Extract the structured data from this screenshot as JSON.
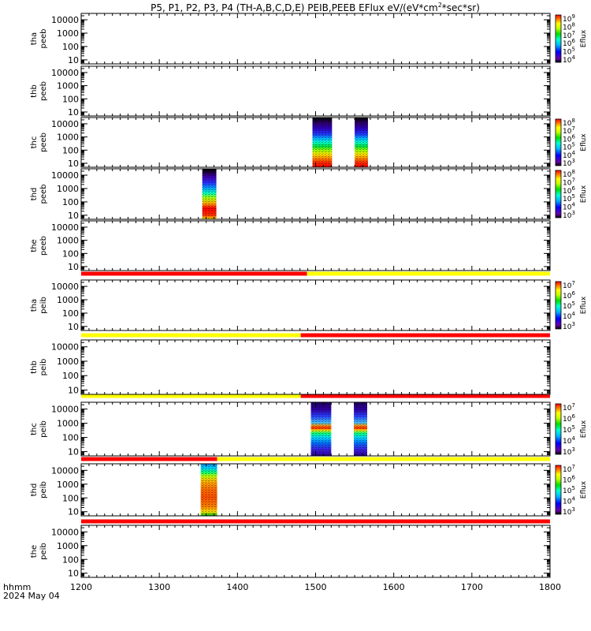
{
  "title": "P5, P1, P2, P3, P4 (TH-A,B,C,D,E) PEIB,PEEB EFlux eV/(eV*cm",
  "title_sup": "2",
  "title_end": "*sec*sr)",
  "x_axis": {
    "unit_label": "hhmm",
    "date_label": "2024 May 04"
  },
  "colorbar_label": "Eflux",
  "chart_data": {
    "type": "heatmap",
    "x_range": [
      1200,
      1800
    ],
    "x_ticks": [
      "1200",
      "1300",
      "1400",
      "1500",
      "1600",
      "1700",
      "1800"
    ],
    "y_ticks": [
      "10",
      "100",
      "1000",
      "10000"
    ],
    "y_scale": "log",
    "y_range": [
      5,
      30000
    ],
    "panels": [
      {
        "probe": "tha",
        "instrument": "peeb",
        "label1": "tha",
        "label2": "peeb",
        "colorbar": {
          "ticks": [
            "10",
            "10",
            "10",
            "10",
            "10",
            "10"
          ],
          "exps": [
            "9",
            "8",
            "7",
            "6",
            "5",
            "4"
          ]
        },
        "blocks": [],
        "status_bar": null
      },
      {
        "probe": "thb",
        "instrument": "peeb",
        "label1": "thb",
        "label2": "peeb",
        "colorbar": null,
        "blocks": [],
        "status_bar": null
      },
      {
        "probe": "thc",
        "instrument": "peeb",
        "label1": "thc",
        "label2": "peeb",
        "colorbar": {
          "ticks": [
            "10",
            "10",
            "10",
            "10",
            "10",
            "10"
          ],
          "exps": [
            "8",
            "7",
            "6",
            "5",
            "4",
            "3"
          ]
        },
        "blocks": [
          {
            "x0": 1496,
            "x1": 1521,
            "style": "peeb_high"
          },
          {
            "x0": 1550,
            "x1": 1567,
            "style": "peeb_high"
          }
        ],
        "status_bar": null
      },
      {
        "probe": "thd",
        "instrument": "peeb",
        "label1": "thd",
        "label2": "peeb",
        "colorbar": {
          "ticks": [
            "10",
            "10",
            "10",
            "10",
            "10",
            "10"
          ],
          "exps": [
            "8",
            "7",
            "6",
            "5",
            "4",
            "3"
          ]
        },
        "blocks": [
          {
            "x0": 1355,
            "x1": 1373,
            "style": "peeb_low"
          }
        ],
        "status_bar": null
      },
      {
        "probe": "the",
        "instrument": "peeb",
        "label1": "the",
        "label2": "peeb",
        "colorbar": null,
        "blocks": [],
        "status_bar": [
          {
            "x0": 1200,
            "x1": 1489,
            "color": "#ff0000"
          },
          {
            "x0": 1489,
            "x1": 1800,
            "color": "#ffff00"
          }
        ]
      },
      {
        "probe": "tha",
        "instrument": "peib",
        "label1": "tha",
        "label2": "peib",
        "colorbar": {
          "ticks": [
            "10",
            "10",
            "10",
            "10",
            "10"
          ],
          "exps": [
            "7",
            "6",
            "5",
            "4",
            "3"
          ]
        },
        "blocks": [],
        "status_bar": [
          {
            "x0": 1200,
            "x1": 1481,
            "color": "#ffff00"
          },
          {
            "x0": 1481,
            "x1": 1800,
            "color": "#ff0000"
          }
        ]
      },
      {
        "probe": "thb",
        "instrument": "peib",
        "label1": "thb",
        "label2": "peib",
        "colorbar": null,
        "blocks": [],
        "status_bar": [
          {
            "x0": 1200,
            "x1": 1481,
            "color": "#ffff00"
          },
          {
            "x0": 1481,
            "x1": 1800,
            "color": "#ff0000"
          }
        ]
      },
      {
        "probe": "thc",
        "instrument": "peib",
        "label1": "thc",
        "label2": "peib",
        "colorbar": {
          "ticks": [
            "10",
            "10",
            "10",
            "10",
            "10"
          ],
          "exps": [
            "7",
            "6",
            "5",
            "4",
            "3"
          ]
        },
        "blocks": [
          {
            "x0": 1494,
            "x1": 1520,
            "style": "peib_high"
          },
          {
            "x0": 1549,
            "x1": 1566,
            "style": "peib_high"
          }
        ],
        "status_bar": [
          {
            "x0": 1200,
            "x1": 1374,
            "color": "#ff0000"
          },
          {
            "x0": 1374,
            "x1": 1800,
            "color": "#ffff00"
          }
        ]
      },
      {
        "probe": "thd",
        "instrument": "peib",
        "label1": "thd",
        "label2": "peib",
        "colorbar": {
          "ticks": [
            "10",
            "10",
            "10",
            "10",
            "10"
          ],
          "exps": [
            "7",
            "6",
            "5",
            "4",
            "3"
          ]
        },
        "blocks": [
          {
            "x0": 1353,
            "x1": 1374,
            "style": "peib_low"
          }
        ],
        "status_bar": [
          {
            "x0": 1200,
            "x1": 1800,
            "color": "#ff0000"
          }
        ]
      },
      {
        "probe": "the",
        "instrument": "peib",
        "label1": "the",
        "label2": "peib",
        "colorbar": null,
        "blocks": [],
        "status_bar": null
      }
    ]
  }
}
